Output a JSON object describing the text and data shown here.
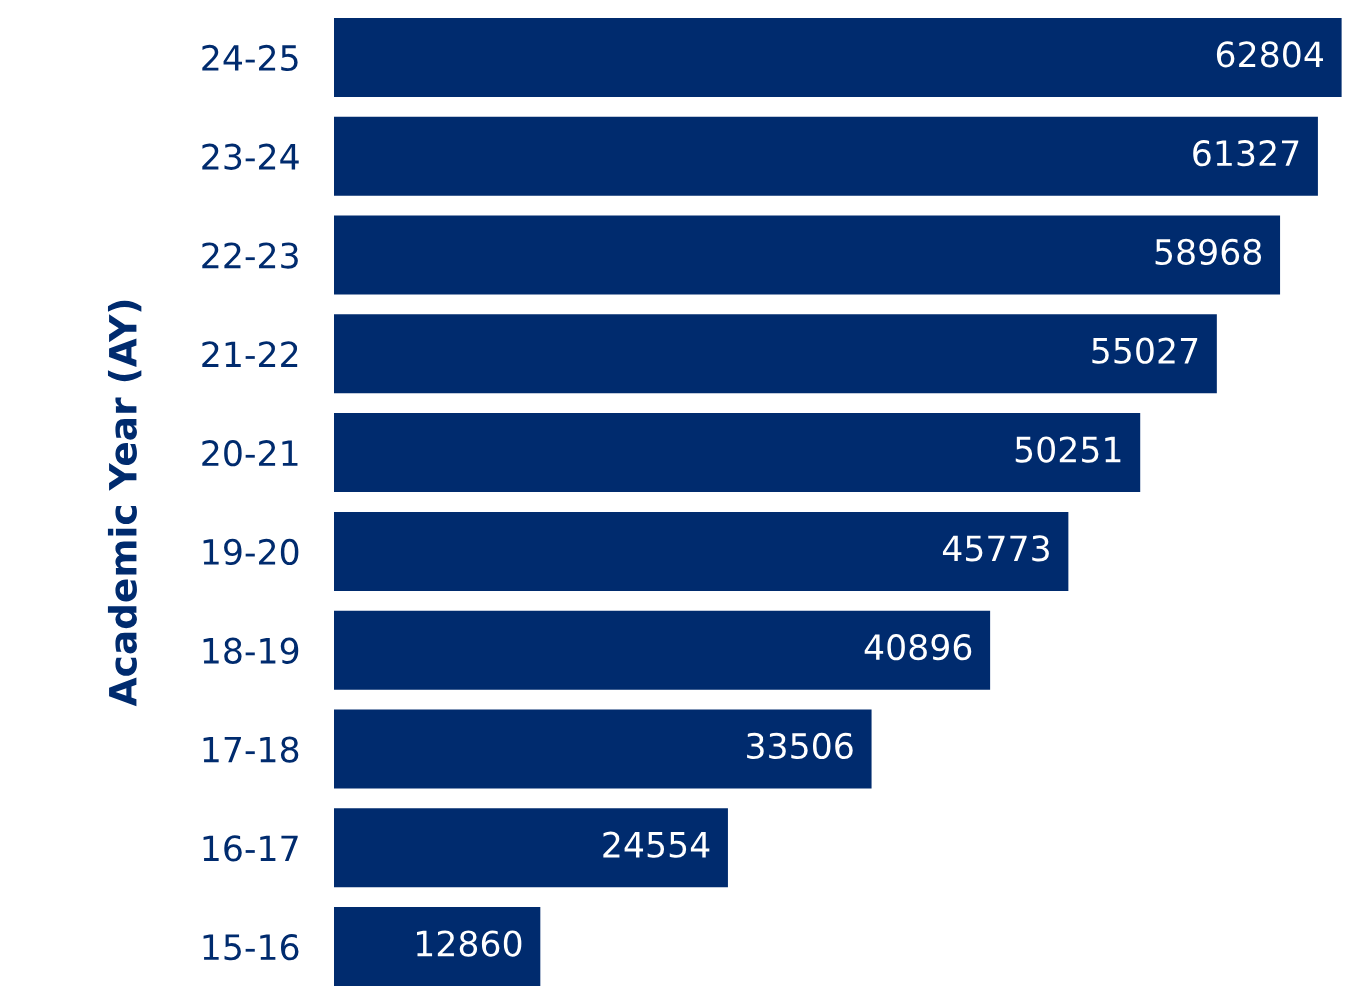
{
  "chart_data": {
    "type": "bar",
    "orientation": "horizontal",
    "ylabel": "Academic Year (AY)",
    "categories": [
      "24-25",
      "23-24",
      "22-23",
      "21-22",
      "20-21",
      "19-20",
      "18-19",
      "17-18",
      "16-17",
      "15-16"
    ],
    "values": [
      62804,
      61327,
      58968,
      55027,
      50251,
      45773,
      40896,
      33506,
      24554,
      12860
    ],
    "color": "#002b6e",
    "data_labels": true,
    "grid": false,
    "legend": false
  }
}
